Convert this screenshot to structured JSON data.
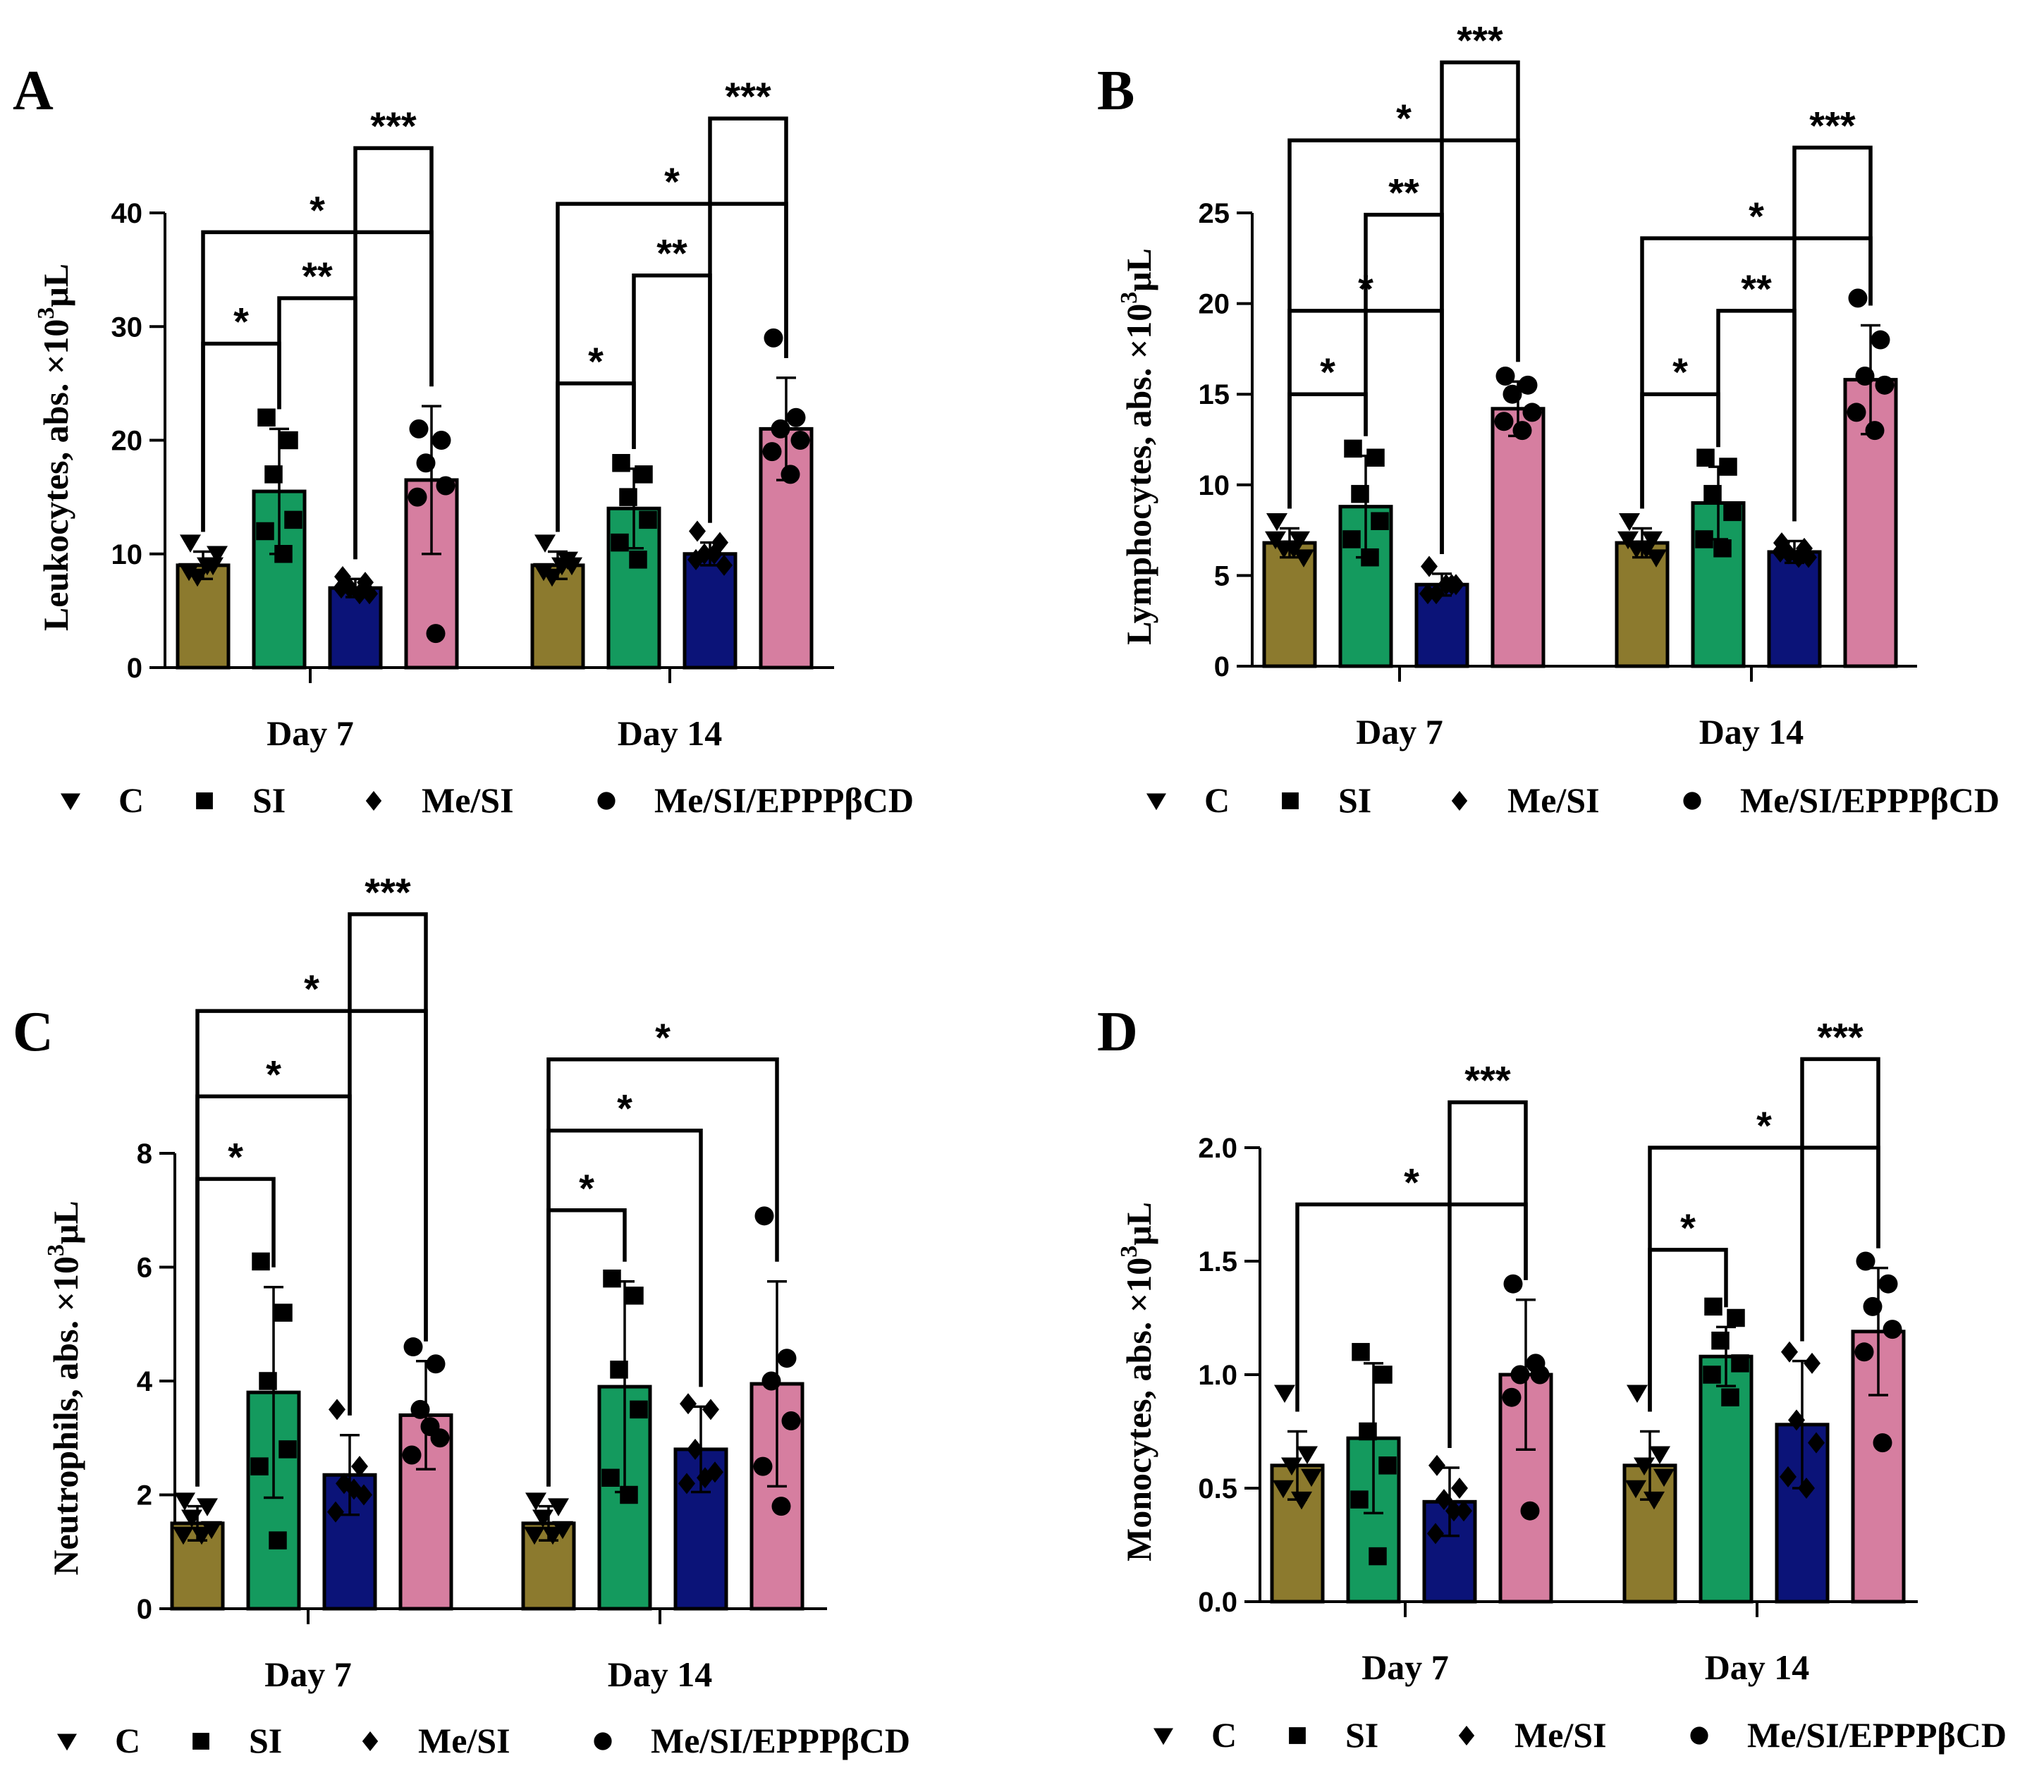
{
  "colors": {
    "C": "#8c7a2e",
    "SI": "#149a5e",
    "MeSI": "#0b1378",
    "MeSIEPPP": "#d67ea0"
  },
  "legend": [
    {
      "symbol": "triangle-down",
      "label": "C",
      "color": "C"
    },
    {
      "symbol": "square",
      "label": "SI",
      "color": "SI"
    },
    {
      "symbol": "diamond",
      "label": "Me/SI",
      "color": "MeSI"
    },
    {
      "symbol": "circle",
      "label": "Me/SI/EPPPβCD",
      "color": "MeSIEPPP"
    }
  ],
  "chart_data": [
    {
      "panel": "A",
      "type": "bar",
      "ylabel_parts": [
        "Leukocytes, abs. ×10",
        "3",
        "μL"
      ],
      "ylim": [
        0,
        40
      ],
      "yticks": [
        0,
        10,
        20,
        30,
        40
      ],
      "tick_labels": [
        "0",
        "10",
        "20",
        "30",
        "40"
      ],
      "categories": [
        "Day 7",
        "Day 14"
      ],
      "groups": [
        {
          "C": [
            9,
            1.2,
            [
              11,
              9,
              8,
              10,
              8.5,
              9
            ]
          ],
          "SI": [
            15.5,
            5.5,
            [
              22,
              20,
              17,
              13,
              12,
              10
            ]
          ],
          "MeSI": [
            7,
            0.8,
            [
              8,
              7.5,
              7,
              6.5,
              7,
              6.5
            ]
          ],
          "MeSIEPPP": [
            16.5,
            6.5,
            [
              21,
              20,
              18,
              16,
              15,
              3
            ]
          ]
        },
        {
          "C": [
            9,
            1.2,
            [
              11,
              9.5,
              8,
              9,
              8.5,
              9
            ]
          ],
          "SI": [
            14,
            3.5,
            [
              18,
              17,
              15,
              13,
              11,
              9.5
            ]
          ],
          "MeSI": [
            10,
            1,
            [
              12,
              11,
              10,
              9,
              9.5,
              10
            ]
          ],
          "MeSIEPPP": [
            21,
            4.5,
            [
              29,
              22,
              21,
              20,
              19,
              17
            ]
          ]
        }
      ],
      "significance": [
        {
          "group": 0,
          "from": "C",
          "to": "SI",
          "y": 28.5,
          "label": "*"
        },
        {
          "group": 0,
          "from": "SI",
          "to": "MeSI",
          "y": 32.5,
          "label": "**"
        },
        {
          "group": 0,
          "from": "C",
          "to": "MeSIEPPP",
          "y": 38.3,
          "label": "*"
        },
        {
          "group": 0,
          "from": "MeSI",
          "to": "MeSIEPPP",
          "y": 45.7,
          "label": "***"
        },
        {
          "group": 1,
          "from": "C",
          "to": "SI",
          "y": 25,
          "label": "*"
        },
        {
          "group": 1,
          "from": "SI",
          "to": "MeSI",
          "y": 34.5,
          "label": "**"
        },
        {
          "group": 1,
          "from": "C",
          "to": "MeSIEPPP",
          "y": 40.8,
          "label": "*"
        },
        {
          "group": 1,
          "from": "MeSI",
          "to": "MeSIEPPP",
          "y": 48.3,
          "label": "***"
        }
      ]
    },
    {
      "panel": "B",
      "type": "bar",
      "ylabel_parts": [
        "Lymphocytes, abs. ×10",
        "3",
        "μL"
      ],
      "ylim": [
        0,
        25
      ],
      "yticks": [
        0,
        5,
        10,
        15,
        20,
        25
      ],
      "tick_labels": [
        "0",
        "5",
        "10",
        "15",
        "20",
        "25"
      ],
      "categories": [
        "Day 7",
        "Day 14"
      ],
      "groups": [
        {
          "C": [
            6.8,
            0.8,
            [
              8,
              7,
              6.5,
              6,
              7,
              6.5
            ]
          ],
          "SI": [
            8.8,
            2.8,
            [
              12,
              11.5,
              9.5,
              8,
              7,
              6
            ]
          ],
          "MeSI": [
            4.5,
            0.6,
            [
              5.5,
              4.5,
              4,
              4.5,
              4,
              4.5
            ]
          ],
          "MeSIEPPP": [
            14.2,
            1.5,
            [
              16,
              15.5,
              15,
              14,
              13.5,
              13
            ]
          ]
        },
        {
          "C": [
            6.8,
            0.8,
            [
              8,
              7,
              6.5,
              6,
              7,
              6.5
            ]
          ],
          "SI": [
            9,
            2,
            [
              11.5,
              11,
              9.5,
              8.5,
              7,
              6.5
            ]
          ],
          "MeSI": [
            6.3,
            0.6,
            [
              6.8,
              6.5,
              6.2,
              6,
              6.3,
              6
            ]
          ],
          "MeSIEPPP": [
            15.8,
            3,
            [
              20.3,
              18,
              16,
              15.5,
              14,
              13
            ]
          ]
        }
      ],
      "significance": [
        {
          "group": 0,
          "from": "C",
          "to": "SI",
          "y": 15,
          "label": "*"
        },
        {
          "group": 0,
          "from": "C",
          "to": "MeSI",
          "y": 19.6,
          "label": "*"
        },
        {
          "group": 0,
          "from": "SI",
          "to": "MeSI",
          "y": 24.9,
          "label": "**"
        },
        {
          "group": 0,
          "from": "C",
          "to": "MeSIEPPP",
          "y": 29,
          "label": "*"
        },
        {
          "group": 0,
          "from": "MeSI",
          "to": "MeSIEPPP",
          "y": 33.3,
          "label": "***"
        },
        {
          "group": 1,
          "from": "C",
          "to": "SI",
          "y": 15,
          "label": "*"
        },
        {
          "group": 1,
          "from": "SI",
          "to": "MeSI",
          "y": 19.6,
          "label": "**"
        },
        {
          "group": 1,
          "from": "C",
          "to": "MeSIEPPP",
          "y": 23.6,
          "label": "*"
        },
        {
          "group": 1,
          "from": "MeSI",
          "to": "MeSIEPPP",
          "y": 28.6,
          "label": "***"
        }
      ]
    },
    {
      "panel": "C",
      "type": "bar",
      "ylabel_parts": [
        "Neutrophils, abs. ×10",
        "3",
        "μL"
      ],
      "ylim": [
        0,
        8
      ],
      "yticks": [
        0,
        2,
        4,
        6,
        8
      ],
      "tick_labels": [
        "0",
        "2",
        "4",
        "6",
        "8"
      ],
      "categories": [
        "Day 7",
        "Day 14"
      ],
      "groups": [
        {
          "C": [
            1.5,
            0.3,
            [
              1.9,
              1.8,
              1.6,
              1.4,
              1.3,
              1.3
            ]
          ],
          "SI": [
            3.8,
            1.85,
            [
              6.1,
              5.2,
              4.0,
              2.8,
              2.5,
              1.2
            ]
          ],
          "MeSI": [
            2.35,
            0.7,
            [
              3.5,
              2.5,
              2.2,
              2.0,
              1.7,
              2.1
            ]
          ],
          "MeSIEPPP": [
            3.4,
            0.95,
            [
              4.6,
              4.3,
              3.5,
              3.0,
              2.7,
              3.2
            ]
          ]
        },
        {
          "C": [
            1.5,
            0.3,
            [
              1.9,
              1.8,
              1.6,
              1.4,
              1.3,
              1.3
            ]
          ],
          "SI": [
            3.9,
            1.85,
            [
              5.8,
              5.5,
              4.2,
              3.5,
              2.3,
              2.0
            ]
          ],
          "MeSI": [
            2.8,
            0.75,
            [
              3.6,
              3.5,
              2.8,
              2.4,
              2.2,
              2.3
            ]
          ],
          "MeSIEPPP": [
            3.95,
            1.8,
            [
              6.9,
              4.4,
              4.0,
              3.3,
              2.5,
              1.8
            ]
          ]
        }
      ],
      "significance": [
        {
          "group": 0,
          "from": "C",
          "to": "SI",
          "y": 7.55,
          "label": "*"
        },
        {
          "group": 0,
          "from": "C",
          "to": "MeSI",
          "y": 9.0,
          "label": "*"
        },
        {
          "group": 0,
          "from": "C",
          "to": "MeSIEPPP",
          "y": 10.5,
          "label": "*"
        },
        {
          "group": 0,
          "from": "MeSI",
          "to": "MeSIEPPP",
          "y": 12.2,
          "label": "***"
        },
        {
          "group": 1,
          "from": "C",
          "to": "SI",
          "y": 7.0,
          "label": "*"
        },
        {
          "group": 1,
          "from": "C",
          "to": "MeSI",
          "y": 8.4,
          "label": "*"
        },
        {
          "group": 1,
          "from": "C",
          "to": "MeSIEPPP",
          "y": 9.65,
          "label": "*"
        }
      ]
    },
    {
      "panel": "D",
      "type": "bar",
      "ylabel_parts": [
        "Monocytes, abs. ×10",
        "3",
        "μL"
      ],
      "ylim": [
        0,
        2
      ],
      "yticks": [
        0,
        0.5,
        1,
        1.5,
        2
      ],
      "tick_labels": [
        "0.0",
        "0.5",
        "1.0",
        "1.5",
        "2.0"
      ],
      "categories": [
        "Day 7",
        "Day 14"
      ],
      "groups": [
        {
          "C": [
            0.6,
            0.15,
            [
              0.92,
              0.65,
              0.6,
              0.55,
              0.5,
              0.45
            ]
          ],
          "SI": [
            0.72,
            0.33,
            [
              1.1,
              1.0,
              0.75,
              0.6,
              0.45,
              0.2
            ]
          ],
          "MeSI": [
            0.44,
            0.15,
            [
              0.6,
              0.5,
              0.45,
              0.4,
              0.3,
              0.4
            ]
          ],
          "MeSIEPPP": [
            1.0,
            0.33,
            [
              1.4,
              1.05,
              1.0,
              1.0,
              0.9,
              0.4
            ]
          ]
        },
        {
          "C": [
            0.6,
            0.15,
            [
              0.92,
              0.65,
              0.6,
              0.55,
              0.5,
              0.45
            ]
          ],
          "SI": [
            1.08,
            0.13,
            [
              1.3,
              1.25,
              1.15,
              1.05,
              1.0,
              0.9
            ]
          ],
          "MeSI": [
            0.78,
            0.28,
            [
              1.1,
              1.05,
              0.8,
              0.7,
              0.55,
              0.5
            ]
          ],
          "MeSIEPPP": [
            1.19,
            0.28,
            [
              1.5,
              1.4,
              1.3,
              1.2,
              1.1,
              0.7
            ]
          ]
        }
      ],
      "significance": [
        {
          "group": 0,
          "from": "C",
          "to": "MeSIEPPP",
          "y": 1.75,
          "label": "*"
        },
        {
          "group": 0,
          "from": "MeSI",
          "to": "MeSIEPPP",
          "y": 2.2,
          "label": "***"
        },
        {
          "group": 1,
          "from": "C",
          "to": "SI",
          "y": 1.55,
          "label": "*"
        },
        {
          "group": 1,
          "from": "C",
          "to": "MeSIEPPP",
          "y": 2.0,
          "label": "*"
        },
        {
          "group": 1,
          "from": "MeSI",
          "to": "MeSIEPPP",
          "y": 2.39,
          "label": "***"
        }
      ]
    }
  ]
}
